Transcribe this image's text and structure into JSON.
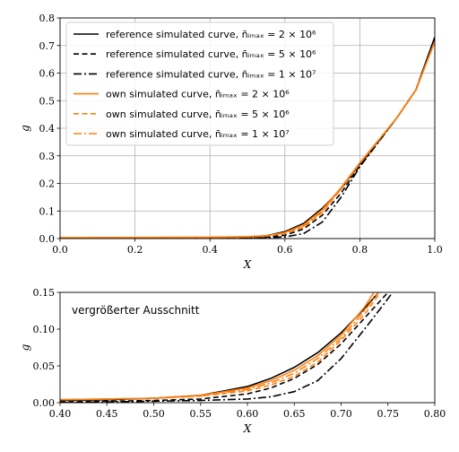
{
  "chart_data": [
    {
      "type": "line",
      "xlabel": "X",
      "ylabel": "g",
      "xlim": [
        0.0,
        1.0
      ],
      "ylim": [
        0.0,
        0.8
      ],
      "xticks": [
        "0.0",
        "0.2",
        "0.4",
        "0.6",
        "0.8",
        "1.0"
      ],
      "yticks": [
        "0.0",
        "0.1",
        "0.2",
        "0.3",
        "0.4",
        "0.5",
        "0.6",
        "0.7",
        "0.8"
      ],
      "grid": true,
      "legend": "top-left",
      "series": [
        {
          "name": "reference simulated curve, n̄ᵢₘₐₓ = 2 × 10⁶",
          "color": "#000000",
          "dash": "solid",
          "x": [
            0.0,
            0.4,
            0.5,
            0.55,
            0.6,
            0.65,
            0.7,
            0.75,
            0.8,
            0.9,
            0.95,
            1.0
          ],
          "y": [
            0.002,
            0.004,
            0.006,
            0.01,
            0.025,
            0.055,
            0.11,
            0.18,
            0.27,
            0.44,
            0.54,
            0.73
          ]
        },
        {
          "name": "reference simulated curve, n̄ᵢₘₐₓ = 5 × 10⁶",
          "color": "#000000",
          "dash": "dashed",
          "x": [
            0.0,
            0.4,
            0.5,
            0.55,
            0.6,
            0.65,
            0.7,
            0.75,
            0.8,
            0.9,
            0.95,
            1.0
          ],
          "y": [
            0.001,
            0.002,
            0.003,
            0.005,
            0.012,
            0.035,
            0.085,
            0.165,
            0.265,
            0.44,
            0.54,
            0.73
          ]
        },
        {
          "name": "reference simulated curve, n̄ᵢₘₐₓ = 1 × 10⁷",
          "color": "#000000",
          "dash": "dashdot",
          "x": [
            0.0,
            0.4,
            0.5,
            0.55,
            0.6,
            0.65,
            0.7,
            0.75,
            0.8,
            0.9,
            0.95,
            1.0
          ],
          "y": [
            0.0,
            0.001,
            0.002,
            0.003,
            0.006,
            0.018,
            0.06,
            0.15,
            0.26,
            0.44,
            0.54,
            0.73
          ]
        },
        {
          "name": "own simulated curve, n̄ᵢₘₐₓ = 2 × 10⁶",
          "color": "#ff7f0e",
          "dash": "solid",
          "x": [
            0.0,
            0.4,
            0.5,
            0.55,
            0.6,
            0.65,
            0.7,
            0.75,
            0.8,
            0.9,
            0.95,
            1.0
          ],
          "y": [
            0.003,
            0.005,
            0.007,
            0.01,
            0.022,
            0.05,
            0.105,
            0.185,
            0.275,
            0.44,
            0.54,
            0.715
          ]
        },
        {
          "name": "own simulated curve, n̄ᵢₘₐₓ = 5 × 10⁶",
          "color": "#ff7f0e",
          "dash": "dashed",
          "x": [
            0.0,
            0.4,
            0.5,
            0.55,
            0.6,
            0.65,
            0.7,
            0.75,
            0.8,
            0.9,
            0.95,
            1.0
          ],
          "y": [
            0.003,
            0.004,
            0.006,
            0.009,
            0.018,
            0.042,
            0.095,
            0.18,
            0.272,
            0.44,
            0.54,
            0.715
          ]
        },
        {
          "name": "own simulated curve, n̄ᵢₘₐₓ = 1 × 10⁷",
          "color": "#ff7f0e",
          "dash": "dashdot",
          "x": [
            0.0,
            0.4,
            0.5,
            0.55,
            0.6,
            0.65,
            0.7,
            0.75,
            0.8,
            0.9,
            0.95,
            1.0
          ],
          "y": [
            0.003,
            0.004,
            0.006,
            0.009,
            0.02,
            0.045,
            0.1,
            0.182,
            0.273,
            0.44,
            0.54,
            0.715
          ]
        }
      ]
    },
    {
      "type": "line",
      "xlabel": "X",
      "ylabel": "g",
      "xlim": [
        0.4,
        0.8
      ],
      "ylim": [
        0.0,
        0.15
      ],
      "xticks": [
        "0.40",
        "0.45",
        "0.50",
        "0.55",
        "0.60",
        "0.65",
        "0.70",
        "0.75",
        "0.80"
      ],
      "yticks": [
        "0.00",
        "0.05",
        "0.10",
        "0.15"
      ],
      "grid": false,
      "annotation": "vergrößerter Ausschnitt",
      "series": [
        {
          "color": "#000000",
          "dash": "solid",
          "x": [
            0.4,
            0.45,
            0.5,
            0.55,
            0.6,
            0.625,
            0.65,
            0.675,
            0.7,
            0.725,
            0.74
          ],
          "y": [
            0.003,
            0.004,
            0.006,
            0.01,
            0.022,
            0.033,
            0.048,
            0.068,
            0.095,
            0.128,
            0.15
          ]
        },
        {
          "color": "#000000",
          "dash": "dashed",
          "x": [
            0.4,
            0.45,
            0.5,
            0.55,
            0.6,
            0.625,
            0.65,
            0.675,
            0.7,
            0.725,
            0.75
          ],
          "y": [
            0.001,
            0.002,
            0.003,
            0.005,
            0.012,
            0.02,
            0.033,
            0.052,
            0.08,
            0.115,
            0.15
          ]
        },
        {
          "color": "#000000",
          "dash": "dashdot",
          "x": [
            0.4,
            0.45,
            0.5,
            0.55,
            0.6,
            0.625,
            0.65,
            0.675,
            0.7,
            0.725,
            0.745,
            0.755
          ],
          "y": [
            0.0,
            0.001,
            0.002,
            0.003,
            0.005,
            0.008,
            0.015,
            0.03,
            0.06,
            0.1,
            0.133,
            0.15
          ]
        },
        {
          "color": "#ff7f0e",
          "dash": "solid",
          "x": [
            0.4,
            0.45,
            0.5,
            0.55,
            0.6,
            0.625,
            0.65,
            0.675,
            0.7,
            0.725,
            0.735
          ],
          "y": [
            0.004,
            0.005,
            0.006,
            0.01,
            0.02,
            0.03,
            0.044,
            0.064,
            0.092,
            0.13,
            0.15
          ]
        },
        {
          "color": "#ff7f0e",
          "dash": "dashed",
          "x": [
            0.4,
            0.45,
            0.5,
            0.55,
            0.6,
            0.625,
            0.65,
            0.675,
            0.7,
            0.725,
            0.742
          ],
          "y": [
            0.004,
            0.005,
            0.006,
            0.009,
            0.016,
            0.024,
            0.036,
            0.055,
            0.085,
            0.12,
            0.15
          ]
        },
        {
          "color": "#ff7f0e",
          "dash": "dashdot",
          "x": [
            0.4,
            0.45,
            0.5,
            0.55,
            0.6,
            0.625,
            0.65,
            0.675,
            0.7,
            0.725,
            0.74
          ],
          "y": [
            0.004,
            0.005,
            0.006,
            0.009,
            0.018,
            0.027,
            0.04,
            0.06,
            0.088,
            0.125,
            0.15
          ]
        }
      ]
    }
  ]
}
